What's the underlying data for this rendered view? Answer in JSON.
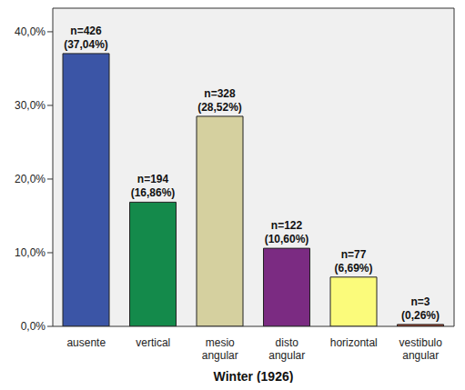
{
  "chart_data": {
    "type": "bar",
    "x_label": "Winter (1926)",
    "categories": [
      "ausente",
      "vertical",
      "mesio angular",
      "disto angular",
      "horizontal",
      "vestibulo angular"
    ],
    "values": [
      37.04,
      16.86,
      28.52,
      10.6,
      6.69,
      0.26
    ],
    "value_labels": [
      "n=426\n(37,04%)",
      "n=194\n(16,86%)",
      "n=328\n(28,52%)",
      "n=122\n(10,60%)",
      "n=77\n(6,69%)",
      "n=3\n(0,26%)"
    ],
    "colors": [
      "#3b55a6",
      "#148a4b",
      "#d5d09f",
      "#7b2b82",
      "#fbfb7b",
      "#b4452c"
    ],
    "ylim": [
      0,
      43.2
    ],
    "yticks": [
      {
        "value": 0,
        "label": "0,0%"
      },
      {
        "value": 10,
        "label": "10,0%"
      },
      {
        "value": 20,
        "label": "20,0%"
      },
      {
        "value": 30,
        "label": "30,0%"
      },
      {
        "value": 40,
        "label": "40,0%"
      }
    ],
    "grid": false,
    "data_labels": true
  }
}
